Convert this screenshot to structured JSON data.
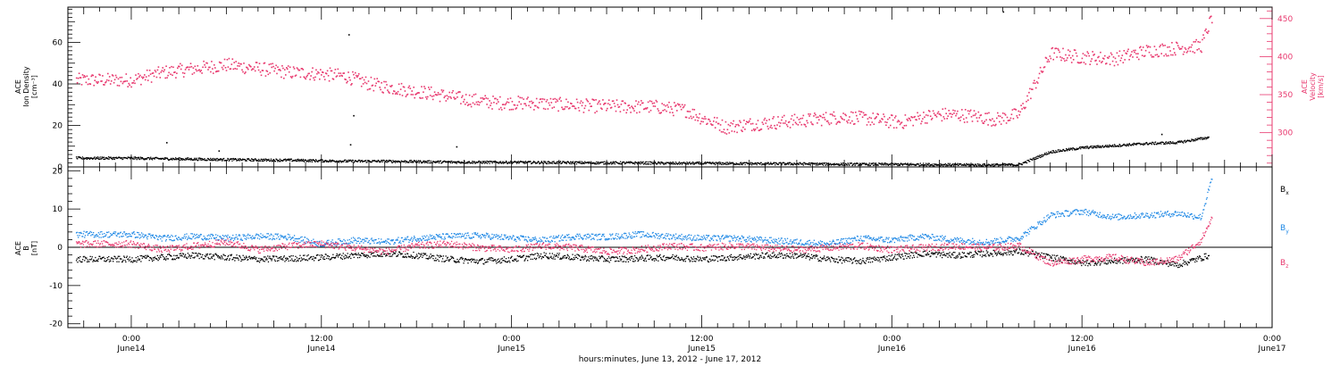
{
  "chart_data": [
    {
      "type": "scatter",
      "panel": "top",
      "ylabel_left": [
        "ACE",
        "Ion Density",
        "[cm⁻³]"
      ],
      "ylabel_right": [
        "ACE",
        "Velocity",
        "[km/s]"
      ],
      "ylim_left": [
        0,
        77
      ],
      "ylim_right": [
        255,
        465
      ],
      "left_ticks": [
        "0",
        "20",
        "40",
        "60"
      ],
      "right_ticks": [
        "300",
        "350",
        "400",
        "450"
      ],
      "series": [
        {
          "name": "",
          "axis": "left",
          "color": "#000000",
          "x_hours": [
            0,
            2,
            4,
            6,
            8,
            10,
            12,
            14,
            16,
            18,
            20,
            22,
            24,
            26,
            28,
            30,
            32,
            34,
            36,
            38,
            40,
            42,
            44,
            46,
            48,
            50,
            52,
            54,
            56,
            58,
            60,
            62,
            64,
            66,
            68
          ],
          "values": [
            4.5,
            4.2,
            4.0,
            3.8,
            3.6,
            3.5,
            3.2,
            3.0,
            3.0,
            2.8,
            2.6,
            2.5,
            2.5,
            2.4,
            2.3,
            2.2,
            2.2,
            2.0,
            2.0,
            1.9,
            1.8,
            1.8,
            1.6,
            1.5,
            1.5,
            1.4,
            1.3,
            1.2,
            1.3,
            7.5,
            9.5,
            10.5,
            11.5,
            12.0,
            14.5
          ],
          "outliers": [
            [
              2.2,
              12.0
            ],
            [
              5.5,
              8.0
            ],
            [
              13.7,
              64.0
            ],
            [
              13.8,
              11.0
            ],
            [
              14.0,
              25.0
            ],
            [
              20.5,
              10.0
            ],
            [
              55.0,
              75.0
            ],
            [
              65.0,
              16.0
            ]
          ]
        },
        {
          "name": "",
          "axis": "right",
          "color": "#e8386e",
          "x_hours": [
            0,
            2,
            4,
            6,
            8,
            10,
            12,
            13.5,
            15,
            17,
            19,
            21,
            23,
            25,
            27,
            29,
            31,
            33,
            35,
            36,
            37.5,
            39,
            41,
            43,
            45,
            47,
            48.5,
            50,
            51.5,
            53,
            54.5,
            56,
            58,
            60,
            62,
            64,
            66,
            67.5,
            68.2
          ],
          "values": [
            370,
            380,
            385,
            390,
            385,
            380,
            378,
            375,
            365,
            358,
            352,
            345,
            340,
            340,
            338,
            336,
            335,
            335,
            330,
            320,
            308,
            312,
            315,
            318,
            322,
            318,
            314,
            322,
            325,
            323,
            318,
            325,
            405,
            400,
            398,
            408,
            412,
            415,
            455
          ]
        }
      ]
    },
    {
      "type": "scatter",
      "panel": "bottom",
      "ylabel_left": [
        "ACE",
        "B",
        "[nT]"
      ],
      "ylim": [
        -21,
        21
      ],
      "ticks": [
        "-20",
        "-10",
        "0",
        "10",
        "20"
      ],
      "legend_placement": "right",
      "legend": [
        {
          "label": "B",
          "sub": "x",
          "color": "#000000"
        },
        {
          "label": "B",
          "sub": "y",
          "color": "#1e88e5"
        },
        {
          "label": "B",
          "sub": "z",
          "color": "#e8386e"
        }
      ],
      "series": [
        {
          "name": "Bx",
          "color": "#000000",
          "x_hours": [
            0,
            2,
            4,
            6,
            8,
            10,
            12,
            14,
            16,
            18,
            20,
            22,
            24,
            26,
            28,
            30,
            32,
            34,
            36,
            38,
            40,
            42,
            44,
            46,
            48,
            50,
            52,
            54,
            56,
            58,
            60,
            62,
            64,
            66,
            68
          ],
          "values": [
            -3.0,
            -2.5,
            -2.0,
            -2.5,
            -3.0,
            -2.8,
            -2.5,
            -2.0,
            -1.5,
            -2.0,
            -3.0,
            -3.5,
            -3.0,
            -2.0,
            -2.5,
            -3.0,
            -2.8,
            -2.5,
            -3.0,
            -2.5,
            -2.0,
            -2.0,
            -3.0,
            -3.5,
            -2.5,
            -1.5,
            -2.0,
            -1.5,
            -1.0,
            -2.5,
            -4.0,
            -3.5,
            -3.0,
            -4.5,
            -2.0
          ]
        },
        {
          "name": "By",
          "color": "#1e88e5",
          "x_hours": [
            0,
            2,
            4,
            6,
            8,
            10,
            12,
            14,
            16,
            18,
            20,
            22,
            24,
            26,
            28,
            30,
            32,
            34,
            36,
            38,
            40,
            42,
            44,
            46,
            48,
            50,
            52,
            54,
            56,
            58,
            60,
            62,
            64,
            66,
            67.5,
            68.2
          ],
          "values": [
            3.5,
            2.5,
            3.0,
            2.5,
            3.0,
            2.8,
            1.0,
            2.0,
            1.5,
            2.5,
            3.0,
            3.2,
            2.5,
            2.0,
            3.0,
            2.8,
            3.5,
            3.0,
            2.5,
            2.5,
            2.0,
            1.5,
            1.0,
            2.5,
            2.0,
            3.0,
            2.0,
            1.5,
            2.5,
            8.5,
            9.5,
            8.0,
            8.5,
            9.0,
            8.0,
            18.5
          ]
        },
        {
          "name": "Bz",
          "color": "#e8386e",
          "x_hours": [
            0,
            2,
            4,
            6,
            8,
            10,
            12,
            14,
            16,
            18,
            20,
            22,
            24,
            26,
            28,
            30,
            32,
            34,
            36,
            38,
            40,
            42,
            44,
            46,
            48,
            50,
            52,
            54,
            56,
            58,
            60,
            62,
            64,
            66,
            67.5,
            68.2
          ],
          "values": [
            1.0,
            -0.5,
            0.5,
            1.5,
            -0.5,
            0.5,
            1.0,
            0.0,
            -1.0,
            0.5,
            1.0,
            0.0,
            -0.5,
            0.5,
            0.0,
            -1.0,
            -0.5,
            0.5,
            0.0,
            0.5,
            0.0,
            -0.5,
            0.0,
            0.5,
            -0.5,
            0.0,
            0.5,
            0.0,
            0.5,
            -4.0,
            -3.0,
            -2.5,
            -4.0,
            -3.0,
            2.0,
            8.0
          ]
        }
      ]
    }
  ],
  "x_axis": {
    "range_hours": [
      -4,
      72
    ],
    "ticks": [
      {
        "h": 0,
        "time": "0:00",
        "day": "June14"
      },
      {
        "h": 12,
        "time": "12:00",
        "day": "June14"
      },
      {
        "h": 24,
        "time": "0:00",
        "day": "June15"
      },
      {
        "h": 36,
        "time": "12:00",
        "day": "June15"
      },
      {
        "h": 48,
        "time": "0:00",
        "day": "June16"
      },
      {
        "h": 60,
        "time": "12:00",
        "day": "June16"
      },
      {
        "h": 72,
        "time": "0:00",
        "day": "June17"
      }
    ],
    "xlabel": "hours:minutes, June 13, 2012 - June 17, 2012"
  }
}
